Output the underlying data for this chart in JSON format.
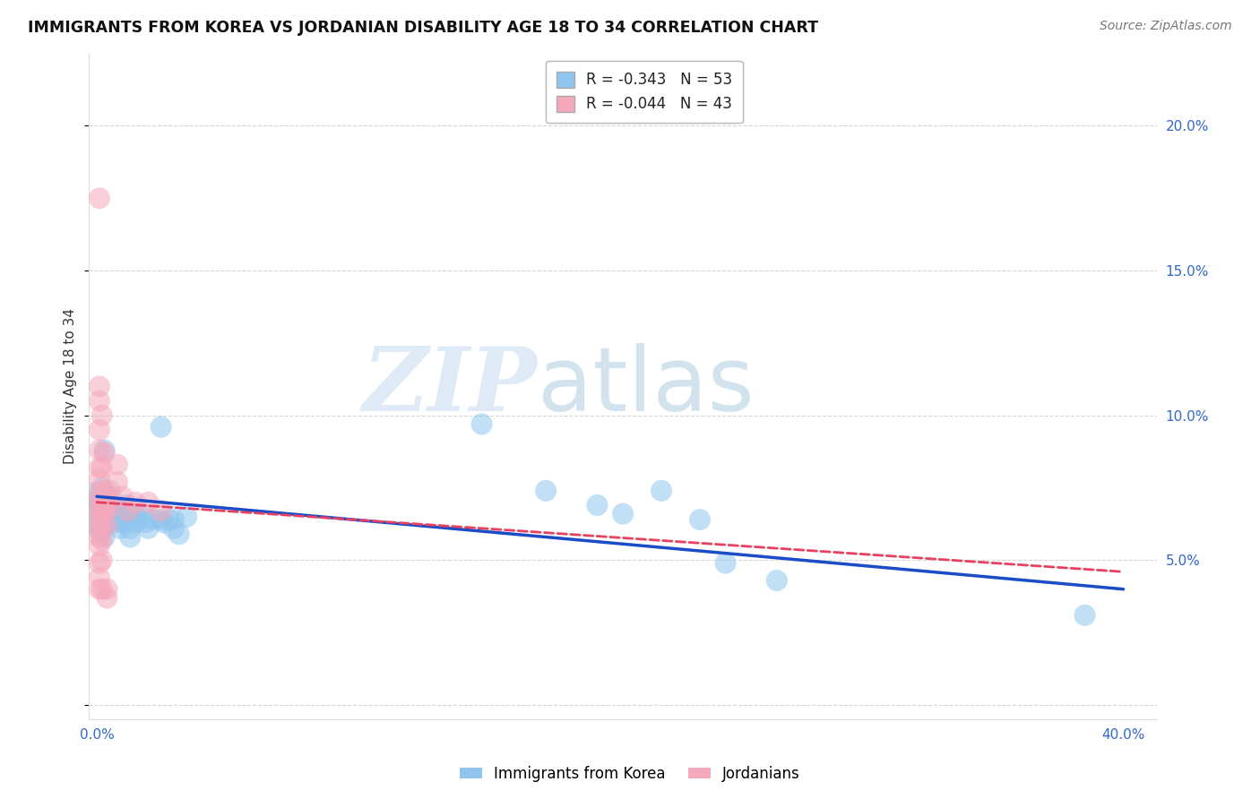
{
  "title": "IMMIGRANTS FROM KOREA VS JORDANIAN DISABILITY AGE 18 TO 34 CORRELATION CHART",
  "source": "Source: ZipAtlas.com",
  "ylabel": "Disability Age 18 to 34",
  "xlim": [
    -0.003,
    0.413
  ],
  "ylim": [
    -0.005,
    0.225
  ],
  "xticks": [
    0.0,
    0.05,
    0.1,
    0.15,
    0.2,
    0.25,
    0.3,
    0.35,
    0.4
  ],
  "yticks_right": [
    0.05,
    0.1,
    0.15,
    0.2
  ],
  "yticklabels_right": [
    "5.0%",
    "10.0%",
    "15.0%",
    "20.0%"
  ],
  "legend_r_entries": [
    {
      "label_r": "-0.343",
      "label_n": "53",
      "color": "#8FC5EE"
    },
    {
      "label_r": "-0.044",
      "label_n": "43",
      "color": "#F5A8BC"
    }
  ],
  "legend_labels": [
    "Immigrants from Korea",
    "Jordanians"
  ],
  "korea_color": "#8FC5EE",
  "jordan_color": "#F5A8BC",
  "korea_line_color": "#1A4CC8",
  "jordan_line_color": "#E84060",
  "watermark_zip": "ZIP",
  "watermark_atlas": "atlas",
  "korea_line": [
    0.0,
    0.072,
    0.4,
    0.04
  ],
  "jordan_line": [
    0.0,
    0.07,
    0.4,
    0.046
  ],
  "korea_points": [
    [
      0.001,
      0.072
    ],
    [
      0.001,
      0.068
    ],
    [
      0.001,
      0.064
    ],
    [
      0.001,
      0.06
    ],
    [
      0.0015,
      0.07
    ],
    [
      0.002,
      0.075
    ],
    [
      0.002,
      0.068
    ],
    [
      0.002,
      0.064
    ],
    [
      0.002,
      0.06
    ],
    [
      0.003,
      0.088
    ],
    [
      0.003,
      0.07
    ],
    [
      0.003,
      0.066
    ],
    [
      0.003,
      0.062
    ],
    [
      0.003,
      0.058
    ],
    [
      0.004,
      0.072
    ],
    [
      0.004,
      0.068
    ],
    [
      0.004,
      0.064
    ],
    [
      0.005,
      0.067
    ],
    [
      0.006,
      0.069
    ],
    [
      0.007,
      0.066
    ],
    [
      0.007,
      0.063
    ],
    [
      0.008,
      0.068
    ],
    [
      0.008,
      0.064
    ],
    [
      0.009,
      0.061
    ],
    [
      0.01,
      0.066
    ],
    [
      0.01,
      0.063
    ],
    [
      0.012,
      0.069
    ],
    [
      0.012,
      0.064
    ],
    [
      0.013,
      0.061
    ],
    [
      0.013,
      0.058
    ],
    [
      0.015,
      0.066
    ],
    [
      0.015,
      0.063
    ],
    [
      0.016,
      0.064
    ],
    [
      0.018,
      0.066
    ],
    [
      0.019,
      0.063
    ],
    [
      0.02,
      0.061
    ],
    [
      0.022,
      0.064
    ],
    [
      0.025,
      0.096
    ],
    [
      0.025,
      0.064
    ],
    [
      0.026,
      0.063
    ],
    [
      0.028,
      0.064
    ],
    [
      0.03,
      0.064
    ],
    [
      0.03,
      0.061
    ],
    [
      0.032,
      0.059
    ],
    [
      0.035,
      0.065
    ],
    [
      0.15,
      0.097
    ],
    [
      0.175,
      0.074
    ],
    [
      0.195,
      0.069
    ],
    [
      0.205,
      0.066
    ],
    [
      0.22,
      0.074
    ],
    [
      0.235,
      0.064
    ],
    [
      0.245,
      0.049
    ],
    [
      0.265,
      0.043
    ],
    [
      0.385,
      0.031
    ]
  ],
  "korea_big_point": [
    0.001,
    0.068,
    1800
  ],
  "jordan_points": [
    [
      0.001,
      0.175
    ],
    [
      0.001,
      0.11
    ],
    [
      0.001,
      0.105
    ],
    [
      0.001,
      0.095
    ],
    [
      0.001,
      0.088
    ],
    [
      0.001,
      0.082
    ],
    [
      0.001,
      0.078
    ],
    [
      0.001,
      0.073
    ],
    [
      0.001,
      0.07
    ],
    [
      0.001,
      0.067
    ],
    [
      0.001,
      0.064
    ],
    [
      0.001,
      0.061
    ],
    [
      0.001,
      0.058
    ],
    [
      0.001,
      0.055
    ],
    [
      0.001,
      0.049
    ],
    [
      0.001,
      0.044
    ],
    [
      0.001,
      0.04
    ],
    [
      0.002,
      0.1
    ],
    [
      0.002,
      0.082
    ],
    [
      0.002,
      0.074
    ],
    [
      0.002,
      0.069
    ],
    [
      0.002,
      0.066
    ],
    [
      0.002,
      0.062
    ],
    [
      0.002,
      0.057
    ],
    [
      0.002,
      0.05
    ],
    [
      0.002,
      0.04
    ],
    [
      0.003,
      0.087
    ],
    [
      0.003,
      0.07
    ],
    [
      0.003,
      0.067
    ],
    [
      0.004,
      0.072
    ],
    [
      0.004,
      0.067
    ],
    [
      0.004,
      0.062
    ],
    [
      0.004,
      0.04
    ],
    [
      0.004,
      0.037
    ],
    [
      0.005,
      0.074
    ],
    [
      0.005,
      0.07
    ],
    [
      0.008,
      0.083
    ],
    [
      0.008,
      0.077
    ],
    [
      0.01,
      0.072
    ],
    [
      0.012,
      0.067
    ],
    [
      0.015,
      0.07
    ],
    [
      0.02,
      0.07
    ],
    [
      0.025,
      0.067
    ]
  ],
  "background_color": "#FFFFFF",
  "grid_color": "#CCCCCC"
}
